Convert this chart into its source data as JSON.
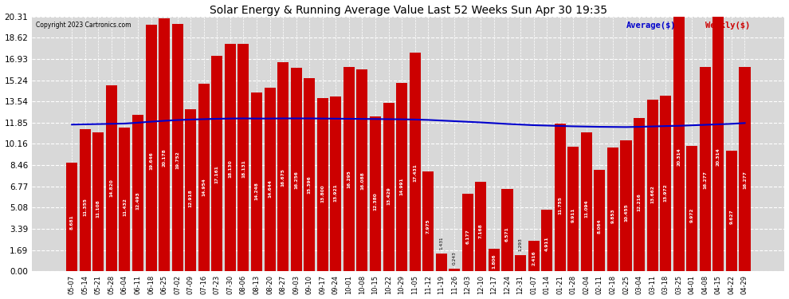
{
  "title": "Solar Energy & Running Average Value Last 52 Weeks Sun Apr 30 19:35",
  "copyright": "Copyright 2023 Cartronics.com",
  "legend_avg": "Average($)",
  "legend_weekly": "Weekly($)",
  "bar_color": "#cc0000",
  "avg_line_color": "#0000cc",
  "background_color": "#ffffff",
  "plot_bg_color": "#d8d8d8",
  "grid_color": "#ffffff",
  "ylim": [
    0,
    20.31
  ],
  "yticks": [
    0.0,
    1.69,
    3.39,
    5.08,
    6.77,
    8.46,
    10.16,
    11.85,
    13.54,
    15.24,
    16.93,
    18.62,
    20.31
  ],
  "categories": [
    "05-07",
    "05-14",
    "05-21",
    "05-28",
    "06-04",
    "06-11",
    "06-18",
    "06-25",
    "07-02",
    "07-09",
    "07-16",
    "07-23",
    "07-30",
    "08-06",
    "08-13",
    "08-20",
    "08-27",
    "09-03",
    "09-10",
    "09-17",
    "09-24",
    "10-01",
    "10-08",
    "10-15",
    "10-22",
    "10-29",
    "11-05",
    "11-12",
    "11-19",
    "11-26",
    "12-03",
    "12-10",
    "12-17",
    "12-24",
    "12-31",
    "01-07",
    "01-14",
    "01-21",
    "01-28",
    "02-04",
    "02-11",
    "02-18",
    "02-25",
    "03-04",
    "03-11",
    "03-18",
    "03-25",
    "04-01",
    "04-08",
    "04-15",
    "04-22",
    "04-29"
  ],
  "weekly_values": [
    8.681,
    11.355,
    11.108,
    14.82,
    11.432,
    12.493,
    19.646,
    20.178,
    19.752,
    12.918,
    14.954,
    17.161,
    18.13,
    18.131,
    14.248,
    14.644,
    16.675,
    16.256,
    15.396,
    13.8,
    13.921,
    16.295,
    16.088,
    12.38,
    13.429,
    14.991,
    17.431,
    7.975,
    1.431,
    0.243,
    6.177,
    7.168,
    1.806,
    6.571,
    1.293,
    2.416,
    4.911,
    11.755,
    9.911,
    11.094,
    8.064,
    9.853,
    10.455,
    12.216,
    13.662,
    13.972,
    20.314,
    9.972,
    16.277,
    20.314,
    9.627,
    16.277
  ],
  "avg_values": [
    11.7,
    11.72,
    11.74,
    11.76,
    11.78,
    11.85,
    11.93,
    12.0,
    12.06,
    12.1,
    12.13,
    12.16,
    12.18,
    12.19,
    12.18,
    12.18,
    12.19,
    12.19,
    12.19,
    12.18,
    12.17,
    12.16,
    12.15,
    12.14,
    12.13,
    12.12,
    12.1,
    12.07,
    12.02,
    11.97,
    11.92,
    11.87,
    11.81,
    11.75,
    11.7,
    11.65,
    11.62,
    11.59,
    11.56,
    11.54,
    11.52,
    11.51,
    11.5,
    11.52,
    11.55,
    11.58,
    11.6,
    11.64,
    11.68,
    11.72,
    11.76,
    11.82
  ]
}
